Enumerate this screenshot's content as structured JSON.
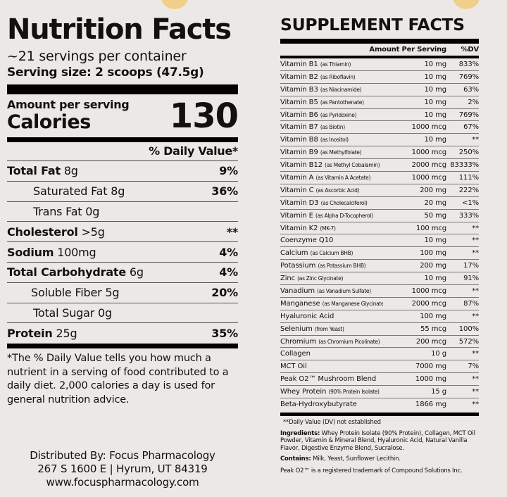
{
  "colors": {
    "background": "#ebe8e6",
    "text": "#111111",
    "rule": "#000000",
    "accent_circle": "#f0cf8a"
  },
  "nutrition_facts": {
    "title": "Nutrition Facts",
    "servings_per_container": "~21 servings per container",
    "serving_size": "Serving size: 2 scoops (47.5g)",
    "amount_per_serving_label": "Amount per serving",
    "calories_label": "Calories",
    "calories_value": "130",
    "daily_value_header": "% Daily Value*",
    "rows": [
      {
        "name": "Total Fat",
        "amount": "8g",
        "dv": "9%",
        "bold": true,
        "indent": false
      },
      {
        "name": "Saturated Fat",
        "amount": "8g",
        "dv": "36%",
        "bold": false,
        "indent": true
      },
      {
        "name": "Trans Fat",
        "amount": "0g",
        "dv": "",
        "bold": false,
        "indent": true
      },
      {
        "name": "Cholesterol",
        "amount": ">5g",
        "dv": "**",
        "bold": true,
        "indent": false
      },
      {
        "name": "Sodium",
        "amount": "100mg",
        "dv": "4%",
        "bold": true,
        "indent": false
      },
      {
        "name": "Total Carbohydrate",
        "amount": "6g",
        "dv": "4%",
        "bold": true,
        "indent": false
      },
      {
        "name": "Soluble Fiber",
        "amount": "5g",
        "dv": "20%",
        "bold": false,
        "indent": true
      },
      {
        "name": "Total Sugar",
        "amount": "0g",
        "dv": "",
        "bold": false,
        "indent": true
      },
      {
        "name": "Protein",
        "amount": "25g",
        "dv": "35%",
        "bold": true,
        "indent": false
      }
    ],
    "footnote": "*The % Daily Value tells you how much a nutrient in a serving of food contributed to a daily diet. 2,000 calories a day is used for general nutrition advice."
  },
  "distributor": {
    "line1": "Distributed By: Focus Pharmacology",
    "line2": "267 S 1600 E | Hyrum, UT 84319",
    "line3": "www.focuspharmacology.com"
  },
  "supplement_facts": {
    "title": "SUPPLEMENT FACTS",
    "header_amount": "Amount Per Serving",
    "header_dv": "%DV",
    "rows": [
      {
        "name": "Vitamin B1",
        "source": "(as Thiamin)",
        "amount": "10 mg",
        "dv": "833%"
      },
      {
        "name": "Vitamin B2",
        "source": "(as Riboflavin)",
        "amount": "10 mg",
        "dv": "769%"
      },
      {
        "name": "Vitamin B3",
        "source": "(as Niacinamide)",
        "amount": "10 mg",
        "dv": "63%"
      },
      {
        "name": "Vitamin B5",
        "source": "(as Pantothenate)",
        "amount": "10 mg",
        "dv": "2%"
      },
      {
        "name": "Vitamin B6",
        "source": "(as Pyridoxine)",
        "amount": "10 mg",
        "dv": "769%"
      },
      {
        "name": "Vitamin B7",
        "source": "(as Biotin)",
        "amount": "1000 mcg",
        "dv": "67%"
      },
      {
        "name": "Vitamin B8",
        "source": "(as Inositol)",
        "amount": "10 mg",
        "dv": "**"
      },
      {
        "name": "Vitamin B9",
        "source": "(as Methylfolate)",
        "amount": "1000 mcg",
        "dv": "250%"
      },
      {
        "name": "Vitamin B12",
        "source": "(as Methyl Cobalamin)",
        "amount": "2000 mcg",
        "dv": "83333%"
      },
      {
        "name": "Vitamin A",
        "source": "(as Vitamin A Acetate)",
        "amount": "1000 mcg",
        "dv": "111%"
      },
      {
        "name": "Vitamin C",
        "source": "(as Ascorbic Acid)",
        "amount": "200 mg",
        "dv": "222%"
      },
      {
        "name": "Vitamin D3",
        "source": "(as Cholecalciferol)",
        "amount": "20 mg",
        "dv": "<1%"
      },
      {
        "name": "Vitamin E",
        "source": "(as Alpha D-Tocopherol)",
        "amount": "50 mg",
        "dv": "333%"
      },
      {
        "name": "Vitamin K2",
        "source": "(MK-7)",
        "amount": "100 mcg",
        "dv": "**"
      },
      {
        "name": "Coenzyme Q10",
        "source": "",
        "amount": "10 mg",
        "dv": "**"
      },
      {
        "name": "Calcium",
        "source": "(as Calcium BHB)",
        "amount": "100 mg",
        "dv": "**"
      },
      {
        "name": "Potassium",
        "source": "(as Potassium BHB)",
        "amount": "200 mg",
        "dv": "17%"
      },
      {
        "name": "Zinc",
        "source": "(as Zinc Glycinate)",
        "amount": "10 mg",
        "dv": "91%"
      },
      {
        "name": "Vanadium",
        "source": "(as Vanadium Sulfate)",
        "amount": "1000 mcg",
        "dv": "**"
      },
      {
        "name": "Manganese",
        "source": "(as Manganese Glycinate)",
        "amount": "2000 mcg",
        "dv": "87%"
      },
      {
        "name": "Hyaluronic Acid",
        "source": "",
        "amount": "100 mg",
        "dv": "**"
      },
      {
        "name": "Selenium",
        "source": "(from Yeast)",
        "amount": "55 mcg",
        "dv": "100%"
      },
      {
        "name": "Chromium",
        "source": "(as Chromium Picolinate)",
        "amount": "200 mcg",
        "dv": "572%"
      },
      {
        "name": "Collagen",
        "source": "",
        "amount": "10 g",
        "dv": "**"
      },
      {
        "name": "MCT Oil",
        "source": "",
        "amount": "7000 mg",
        "dv": "7%"
      },
      {
        "name": "Peak O2™ Mushroom Blend",
        "source": "",
        "amount": "1000 mg",
        "dv": "**"
      },
      {
        "name": "Whey Protein",
        "source": "(90% Protein Isolate)",
        "amount": "15 g",
        "dv": "**"
      },
      {
        "name": "Beta-Hydroxybutyrate",
        "source": "",
        "amount": "1866 mg",
        "dv": "**"
      }
    ],
    "dv_note": "**Daily Value (DV) not established",
    "ingredients_label": "Ingredients:",
    "ingredients_text": "Whey Protein Isolate (90% Protein), Collagen, MCT Oil Powder, Vitamin & Mineral Blend, Hyaluronic Acid, Natural Vanilla Flavor, Digestive Enzyme Blend, Sucralose.",
    "contains_label": "Contains:",
    "contains_text": "Milk, Yeast, Sunflower Lecithin.",
    "trademark_note": "Peak O2™ is a registered trademark of Compound Solutions Inc."
  }
}
